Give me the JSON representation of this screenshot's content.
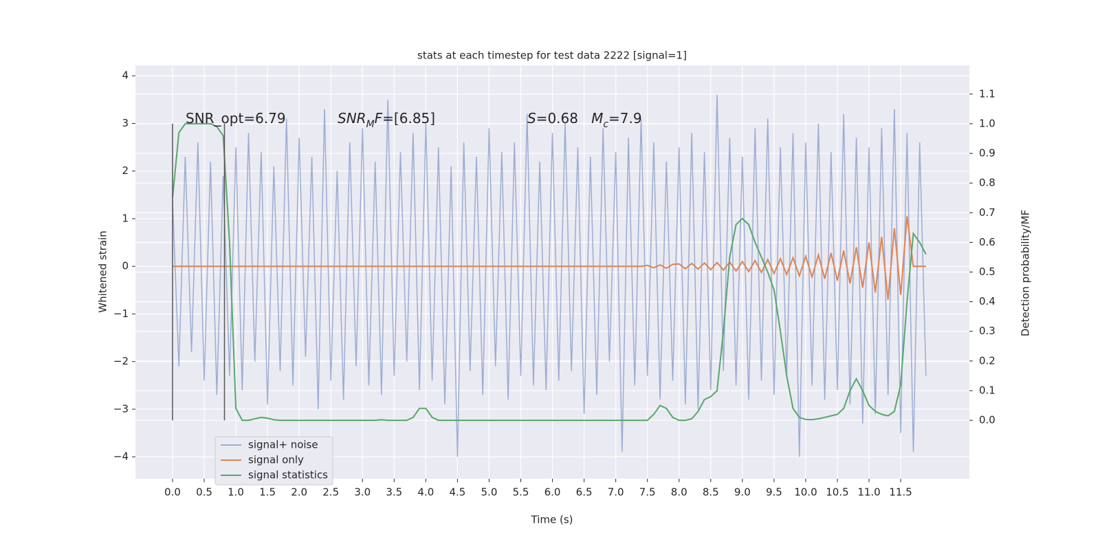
{
  "chart_data": {
    "type": "line",
    "title": "stats at each timestep for test data 2222 [signal=1]",
    "x_label": "Time (s)",
    "y_label": "Whitened strain",
    "y2_label": "Detection probability/MF",
    "xlim": [
      -0.586,
      12.585
    ],
    "ylim": [
      -4.46,
      4.22
    ],
    "y2lim": [
      -0.197,
      1.197
    ],
    "xticks": [
      {
        "value": 0,
        "label": "0.0"
      },
      {
        "value": 0.5,
        "label": "0.5"
      },
      {
        "value": 1,
        "label": "1.0"
      },
      {
        "value": 1.5,
        "label": "1.5"
      },
      {
        "value": 2,
        "label": "2.0"
      },
      {
        "value": 2.5,
        "label": "2.5"
      },
      {
        "value": 3,
        "label": "3.0"
      },
      {
        "value": 3.5,
        "label": "3.5"
      },
      {
        "value": 4,
        "label": "4.0"
      },
      {
        "value": 4.5,
        "label": "4.5"
      },
      {
        "value": 5,
        "label": "5.0"
      },
      {
        "value": 5.5,
        "label": "5.5"
      },
      {
        "value": 6,
        "label": "6.0"
      },
      {
        "value": 6.5,
        "label": "6.5"
      },
      {
        "value": 7,
        "label": "7.0"
      },
      {
        "value": 7.5,
        "label": "7.5"
      },
      {
        "value": 8,
        "label": "8.0"
      },
      {
        "value": 8.5,
        "label": "8.5"
      },
      {
        "value": 9,
        "label": "9.0"
      },
      {
        "value": 9.5,
        "label": "9.5"
      },
      {
        "value": 10,
        "label": "10.0"
      },
      {
        "value": 10.5,
        "label": "10.5"
      },
      {
        "value": 11,
        "label": "11.0"
      },
      {
        "value": 11.5,
        "label": "11.5"
      }
    ],
    "yticks": [
      {
        "value": -4,
        "label": "−4"
      },
      {
        "value": -3,
        "label": "−3"
      },
      {
        "value": -2,
        "label": "−2"
      },
      {
        "value": -1,
        "label": "−1"
      },
      0,
      1,
      2,
      3,
      4
    ],
    "y2ticks": [
      {
        "value": 0,
        "label": "0.0"
      },
      0.1,
      0.2,
      0.3,
      0.4,
      0.5,
      0.6,
      0.7,
      0.8,
      0.9,
      {
        "value": 1,
        "label": "1.0"
      },
      1.1
    ],
    "grid": true,
    "legend": "lower left",
    "vlines": [
      0,
      0.82
    ],
    "vline_extent_y2": [
      0,
      1
    ],
    "annotations": [
      [
        {
          "text": "SNR_opt=6.79",
          "style": "normal"
        }
      ],
      [
        {
          "text": "SNR",
          "style": "italic"
        },
        {
          "text": "M",
          "style": "sub"
        },
        {
          "text": "F",
          "style": "italic"
        },
        {
          "text": "=[6.85]",
          "style": "normal"
        }
      ],
      [
        {
          "text": "S",
          "style": "italic"
        },
        {
          "text": "=0.68   ",
          "style": "normal"
        },
        {
          "text": "M",
          "style": "italic"
        },
        {
          "text": "c",
          "style": "sub"
        },
        {
          "text": "=7.9",
          "style": "normal"
        }
      ]
    ],
    "x": [
      0,
      0.1,
      0.2,
      0.3,
      0.4,
      0.5,
      0.6,
      0.7,
      0.8,
      0.9,
      1,
      1.1,
      1.2,
      1.3,
      1.4,
      1.5,
      1.6,
      1.7,
      1.8,
      1.9,
      2,
      2.1,
      2.2,
      2.3,
      2.4,
      2.5,
      2.6,
      2.7,
      2.8,
      2.9,
      3,
      3.1,
      3.2,
      3.3,
      3.4,
      3.5,
      3.6,
      3.7,
      3.8,
      3.9,
      4,
      4.1,
      4.2,
      4.3,
      4.4,
      4.5,
      4.6,
      4.7,
      4.8,
      4.9,
      5,
      5.1,
      5.2,
      5.3,
      5.4,
      5.5,
      5.6,
      5.7,
      5.8,
      5.9,
      6,
      6.1,
      6.2,
      6.3,
      6.4,
      6.5,
      6.6,
      6.7,
      6.8,
      6.9,
      7,
      7.1,
      7.2,
      7.3,
      7.4,
      7.5,
      7.6,
      7.7,
      7.8,
      7.9,
      8,
      8.1,
      8.2,
      8.3,
      8.4,
      8.5,
      8.6,
      8.7,
      8.8,
      8.9,
      9,
      9.1,
      9.2,
      9.3,
      9.4,
      9.5,
      9.6,
      9.7,
      9.8,
      9.9,
      10,
      10.1,
      10.2,
      10.3,
      10.4,
      10.5,
      10.6,
      10.7,
      10.8,
      10.9,
      11,
      11.1,
      11.2,
      11.3,
      11.4,
      11.5,
      11.6,
      11.7,
      11.8,
      11.9
    ],
    "series": [
      {
        "name": "signal+ noise",
        "color": "#8197c8",
        "values": [
          1.4,
          -2.1,
          2.3,
          -1.8,
          2.6,
          -2.4,
          2.2,
          -2.7,
          1.9,
          -2.3,
          2.5,
          -2.6,
          2.8,
          -2.0,
          2.4,
          -2.9,
          2.1,
          -2.2,
          3.1,
          -2.5,
          2.7,
          -1.9,
          2.3,
          -3.0,
          3.3,
          -2.4,
          2.0,
          -2.8,
          2.6,
          -2.1,
          2.9,
          -2.5,
          2.2,
          -2.7,
          3.5,
          -2.3,
          2.4,
          -2.0,
          2.8,
          -2.6,
          3.0,
          -2.4,
          2.5,
          -2.9,
          2.1,
          -4.0,
          2.6,
          -2.2,
          2.3,
          -2.7,
          2.9,
          -2.1,
          2.4,
          -2.8,
          2.6,
          -2.3,
          3.2,
          -2.5,
          2.2,
          -2.6,
          2.8,
          -2.4,
          3.0,
          -2.2,
          2.5,
          -3.1,
          2.3,
          -2.7,
          2.9,
          -2.0,
          2.4,
          -3.9,
          2.7,
          -2.5,
          3.1,
          -2.3,
          2.6,
          -2.8,
          2.2,
          -2.4,
          2.5,
          -2.9,
          2.8,
          -3.0,
          2.4,
          -2.6,
          3.6,
          -2.2,
          2.7,
          -2.5,
          2.3,
          -2.8,
          2.9,
          -2.4,
          3.1,
          -2.7,
          2.5,
          -2.3,
          2.8,
          -4.0,
          2.6,
          -2.5,
          3.0,
          -2.8,
          2.4,
          -2.6,
          3.2,
          -2.9,
          2.7,
          -3.3,
          2.5,
          -3.1,
          2.9,
          -2.7,
          3.3,
          -3.5,
          2.8,
          -3.9,
          2.6,
          -2.3
        ]
      },
      {
        "name": "signal only",
        "color": "#dd8452",
        "values": [
          0,
          0,
          0,
          0,
          0,
          0,
          0,
          0,
          0,
          0,
          0,
          0,
          0,
          0,
          0,
          0,
          0,
          0,
          0,
          0,
          0,
          0,
          0,
          0,
          0,
          0,
          0,
          0,
          0,
          0,
          0,
          0,
          0,
          0,
          0,
          0,
          0,
          0,
          0,
          0,
          0,
          0,
          0,
          0,
          0,
          0,
          0,
          0,
          0,
          0,
          0,
          0,
          0,
          0,
          0,
          0,
          0,
          0,
          0,
          0,
          0,
          0,
          0,
          0,
          0,
          0,
          0,
          0,
          0,
          0,
          0,
          0,
          0,
          0,
          0,
          0.02,
          -0.03,
          0.03,
          -0.04,
          0.04,
          0.05,
          -0.05,
          0.06,
          -0.06,
          0.07,
          -0.07,
          0.08,
          -0.08,
          0.09,
          -0.1,
          0.1,
          -0.11,
          0.12,
          -0.13,
          0.14,
          -0.15,
          0.16,
          -0.17,
          0.18,
          -0.2,
          0.21,
          -0.22,
          0.24,
          -0.26,
          0.28,
          -0.3,
          0.33,
          -0.36,
          0.4,
          -0.45,
          0.5,
          -0.55,
          0.62,
          -0.7,
          0.8,
          -0.6,
          1.05,
          0,
          0,
          0
        ]
      },
      {
        "name": "signal statistics",
        "color": "#55a868",
        "axis": "y2",
        "values": [
          0.75,
          0.97,
          1.0,
          1.0,
          1.0,
          1.0,
          1.0,
          0.99,
          0.96,
          0.6,
          0.04,
          0.0,
          0.0,
          0.005,
          0.01,
          0.007,
          0.002,
          0,
          0,
          0,
          0,
          0,
          0,
          0,
          0,
          0,
          0,
          0,
          0,
          0,
          0,
          0,
          0,
          0.002,
          0,
          0,
          0,
          0,
          0.01,
          0.04,
          0.04,
          0.01,
          0,
          0,
          0,
          0,
          0,
          0,
          0,
          0,
          0,
          0,
          0,
          0,
          0,
          0,
          0,
          0,
          0,
          0,
          0,
          0,
          0,
          0,
          0,
          0,
          0,
          0,
          0,
          0,
          0,
          0,
          0,
          0,
          0,
          0,
          0.02,
          0.05,
          0.04,
          0.01,
          0,
          0,
          0.005,
          0.03,
          0.07,
          0.08,
          0.1,
          0.3,
          0.55,
          0.66,
          0.68,
          0.66,
          0.6,
          0.55,
          0.5,
          0.44,
          0.3,
          0.15,
          0.04,
          0.01,
          0.003,
          0.002,
          0.005,
          0.01,
          0.015,
          0.02,
          0.04,
          0.1,
          0.14,
          0.1,
          0.05,
          0.03,
          0.02,
          0.015,
          0.03,
          0.12,
          0.4,
          0.63,
          0.6,
          0.56
        ]
      }
    ]
  }
}
